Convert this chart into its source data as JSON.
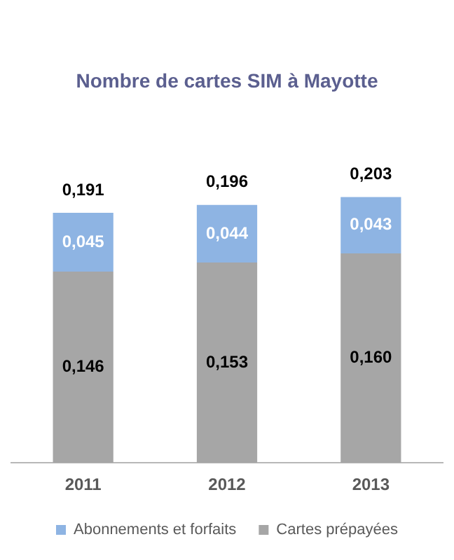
{
  "chart_data": {
    "type": "bar",
    "title": "Nombre de cartes SIM à Mayotte",
    "categories": [
      "2011",
      "2012",
      "2013"
    ],
    "stacked": true,
    "series": [
      {
        "name": "Cartes prépayées",
        "color": "#a6a6a6",
        "values": [
          0.146,
          0.153,
          0.16
        ],
        "value_labels": [
          "0,146",
          "0,153",
          "0,160"
        ]
      },
      {
        "name": "Abonnements et forfaits",
        "color": "#8eb4e3",
        "values": [
          0.045,
          0.044,
          0.043
        ],
        "value_labels": [
          "0,045",
          "0,044",
          "0,043"
        ]
      }
    ],
    "totals": [
      "0,191",
      "0,196",
      "0,203"
    ],
    "legend": "bottom",
    "grid": false,
    "tick_labels": "x"
  }
}
